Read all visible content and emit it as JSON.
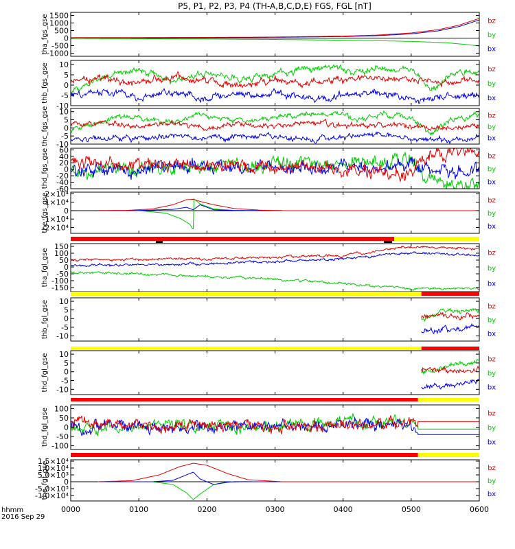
{
  "title": "P5, P1, P2, P3, P4 (TH-A,B,C,D,E) FGS, FGL [nT]",
  "colors": {
    "bz": "#e00000",
    "by": "#00cc00",
    "bx": "#0000e6",
    "mode_slow": "#ff0000",
    "mode_fast": "#ffff00",
    "mode_burst": "#000000",
    "axis": "#000000"
  },
  "legend": [
    "bz",
    "by",
    "bx"
  ],
  "x_axis": {
    "ticks": [
      "0000",
      "0100",
      "0200",
      "0300",
      "0400",
      "0500",
      "0600"
    ],
    "corner_label": "hhmm",
    "date_label": "2016 Sep 29",
    "range_hours": [
      0,
      6
    ]
  },
  "chart_data": [
    {
      "type": "line",
      "ylabel": "tha_fgs_gse",
      "ylim": [
        -1200,
        1700
      ],
      "yticks": [
        "1500",
        "1000",
        "500",
        "0",
        "-500",
        "-1000"
      ],
      "ytick_values": [
        1500,
        1000,
        500,
        0,
        -500,
        -1000
      ],
      "zero_line": true,
      "data_start": 0.0,
      "data_end": 6.0,
      "noise": 0,
      "series": [
        {
          "name": "bz",
          "x": [
            0,
            1,
            2,
            3,
            4,
            4.5,
            5,
            5.4,
            5.7,
            5.9,
            6.0
          ],
          "values": [
            30,
            35,
            45,
            70,
            130,
            200,
            340,
            560,
            850,
            1150,
            1300
          ]
        },
        {
          "name": "by",
          "x": [
            0,
            1,
            2,
            3,
            4,
            4.5,
            5,
            5.5,
            5.8,
            6.0
          ],
          "values": [
            -20,
            -40,
            -60,
            -90,
            -140,
            -170,
            -220,
            -300,
            -420,
            -520
          ]
        },
        {
          "name": "bx",
          "x": [
            0,
            1,
            2,
            3,
            4,
            4.5,
            5,
            5.4,
            5.7,
            5.9,
            6.0
          ],
          "values": [
            20,
            25,
            35,
            55,
            100,
            160,
            280,
            480,
            760,
            1050,
            1200
          ]
        }
      ]
    },
    {
      "type": "line",
      "ylabel": "thb_fgs_gse",
      "ylim": [
        -10,
        12
      ],
      "yticks": [
        "10",
        "5",
        "0",
        "-5",
        "-10"
      ],
      "ytick_values": [
        10,
        5,
        0,
        -5,
        -10
      ],
      "zero_line": false,
      "data_start": 0.0,
      "data_end": 6.0,
      "noise": 1.3,
      "series": [
        {
          "name": "bz",
          "x": [
            0,
            0.5,
            1,
            1.5,
            2,
            2.5,
            3,
            3.5,
            4,
            4.5,
            5,
            5.5,
            6
          ],
          "values": [
            2,
            3,
            1,
            4,
            2,
            0,
            3,
            1,
            2,
            4,
            2,
            1,
            3
          ]
        },
        {
          "name": "by",
          "x": [
            0,
            0.5,
            1,
            1.5,
            2,
            2.5,
            3,
            3.5,
            3.9,
            4.2,
            4.6,
            5,
            5.3,
            5.6,
            6
          ],
          "values": [
            -3,
            4,
            8,
            2,
            6,
            3,
            5,
            8,
            9,
            6,
            9,
            7,
            -3,
            5,
            6
          ]
        },
        {
          "name": "bx",
          "x": [
            0,
            0.5,
            1,
            1.5,
            2,
            2.5,
            3,
            3.5,
            4,
            4.5,
            5,
            5.5,
            6
          ],
          "values": [
            -5,
            -3,
            -6,
            -4,
            -6,
            -5,
            -4,
            -6,
            -5,
            -3,
            -7,
            -6,
            -5
          ]
        }
      ]
    },
    {
      "type": "line",
      "ylabel": "thc_fgs_gse",
      "ylim": [
        -10,
        12
      ],
      "yticks": [
        "10",
        "5",
        "0",
        "-5",
        "-10"
      ],
      "ytick_values": [
        10,
        5,
        0,
        -5,
        -10
      ],
      "zero_line": false,
      "data_start": 0.0,
      "data_end": 6.0,
      "noise": 1.3,
      "series": [
        {
          "name": "bz",
          "x": [
            0,
            0.5,
            1,
            1.5,
            2,
            2.5,
            3,
            3.5,
            4,
            4.5,
            5,
            5.5,
            6
          ],
          "values": [
            3,
            2,
            1,
            3,
            0,
            2,
            1,
            3,
            1,
            2,
            1,
            0,
            2
          ]
        },
        {
          "name": "by",
          "x": [
            0,
            0.5,
            1,
            1.5,
            2,
            2.5,
            3,
            3.5,
            3.9,
            4.3,
            4.6,
            5,
            5.3,
            5.6,
            6
          ],
          "values": [
            -2,
            5,
            7,
            3,
            8,
            4,
            6,
            9,
            8,
            5,
            9,
            6,
            -4,
            5,
            7
          ]
        },
        {
          "name": "bx",
          "x": [
            0,
            0.5,
            1,
            1.5,
            2,
            2.5,
            3,
            3.5,
            4,
            4.5,
            5,
            5.5,
            6
          ],
          "values": [
            -7,
            -6,
            -7,
            -5,
            -7,
            -6,
            -5,
            -7,
            -6,
            -4,
            -7,
            -7,
            -6
          ]
        }
      ]
    },
    {
      "type": "line",
      "ylabel": "thd_fgs_gse",
      "ylim": [
        -60,
        65
      ],
      "yticks": [
        "60",
        "40",
        "20",
        "0",
        "-20",
        "-40",
        "-60"
      ],
      "ytick_values": [
        60,
        40,
        20,
        0,
        -20,
        -40,
        -60
      ],
      "zero_line": false,
      "data_start": 0.0,
      "data_end": 6.0,
      "noise": 16,
      "series": [
        {
          "name": "bz",
          "x": [
            0,
            1,
            2,
            3,
            4,
            4.5,
            5,
            5.2,
            5.5,
            6
          ],
          "values": [
            25,
            15,
            10,
            5,
            0,
            -10,
            -15,
            40,
            50,
            55
          ]
        },
        {
          "name": "by",
          "x": [
            0,
            1,
            2,
            3,
            4,
            4.5,
            5,
            5.2,
            5.5,
            6
          ],
          "values": [
            -10,
            0,
            10,
            15,
            20,
            25,
            30,
            -30,
            -40,
            -50
          ]
        },
        {
          "name": "bx",
          "x": [
            0,
            1,
            2,
            3,
            4,
            5,
            5.2,
            5.5,
            6
          ],
          "values": [
            -5,
            0,
            5,
            5,
            10,
            10,
            5,
            0,
            -5
          ]
        }
      ]
    },
    {
      "type": "line",
      "ylabel": "the_fgs_gse",
      "ylim": [
        -27000,
        22000
      ],
      "yticks": [
        "2×10⁴",
        "1×10⁴",
        "0",
        "-1×10⁴",
        "-2×10⁴"
      ],
      "ytick_values": [
        20000,
        10000,
        0,
        -10000,
        -20000
      ],
      "zero_line": true,
      "data_start": 0.4,
      "data_end": 3.1,
      "noise": 0,
      "extra_bz_flat": [
        3.1,
        6.0,
        0
      ],
      "series": [
        {
          "name": "bz",
          "x": [
            0.4,
            0.8,
            1.2,
            1.5,
            1.7,
            1.8,
            1.9,
            2.1,
            2.4,
            2.8,
            3.1
          ],
          "values": [
            0,
            200,
            2000,
            7000,
            13000,
            13500,
            11000,
            7000,
            2500,
            500,
            0
          ]
        },
        {
          "name": "by",
          "x": [
            0.4,
            1.0,
            1.4,
            1.6,
            1.75,
            1.8,
            1.81,
            1.9,
            2.1,
            2.4,
            3.1
          ],
          "values": [
            0,
            0,
            -3000,
            -9000,
            -16000,
            -23000,
            14000,
            8000,
            2000,
            300,
            0
          ]
        },
        {
          "name": "bx",
          "x": [
            0.4,
            1.0,
            1.5,
            1.7,
            1.8,
            1.9,
            2.1,
            2.4,
            3.1
          ],
          "values": [
            0,
            200,
            1500,
            4000,
            1000,
            7000,
            1000,
            200,
            0
          ]
        }
      ]
    },
    {
      "type": "line",
      "ylabel": "tha_fgl_gse",
      "ylim": [
        -180,
        170
      ],
      "yticks": [
        "150",
        "100",
        "50",
        "0",
        "-50",
        "-100",
        "-150"
      ],
      "ytick_values": [
        150,
        100,
        50,
        0,
        -50,
        -100,
        -150
      ],
      "zero_line": false,
      "data_start": 0.0,
      "data_end": 6.0,
      "noise": 7,
      "series": [
        {
          "name": "bz",
          "x": [
            0,
            1,
            2,
            3,
            4,
            4.4,
            4.7,
            5,
            5.5,
            6
          ],
          "values": [
            50,
            55,
            60,
            70,
            85,
            105,
            135,
            145,
            140,
            135
          ]
        },
        {
          "name": "by",
          "x": [
            0,
            1,
            2,
            3,
            4,
            4.5,
            5,
            5.5,
            6
          ],
          "values": [
            -40,
            -50,
            -70,
            -90,
            -120,
            -140,
            -160,
            -160,
            -155
          ]
        },
        {
          "name": "bx",
          "x": [
            0,
            1,
            2,
            3,
            4,
            4.5,
            4.8,
            5,
            5.5,
            6
          ],
          "values": [
            10,
            15,
            25,
            40,
            60,
            80,
            100,
            100,
            95,
            90
          ]
        }
      ]
    },
    {
      "type": "line",
      "ylabel": "thb_fgl_gse",
      "ylim": [
        -13,
        12
      ],
      "yticks": [
        "10",
        "5",
        "0",
        "-5",
        "-10"
      ],
      "ytick_values": [
        10,
        5,
        0,
        -5,
        -10
      ],
      "zero_line": false,
      "data_start": 5.15,
      "data_end": 6.0,
      "noise": 1.2,
      "series": [
        {
          "name": "bz",
          "x": [
            5.15,
            5.4,
            5.7,
            6.0
          ],
          "values": [
            1,
            2,
            1,
            2
          ]
        },
        {
          "name": "by",
          "x": [
            5.15,
            5.4,
            5.7,
            6.0
          ],
          "values": [
            0,
            3,
            5,
            6
          ]
        },
        {
          "name": "bx",
          "x": [
            5.15,
            5.4,
            5.7,
            6.0
          ],
          "values": [
            -8,
            -7,
            -6,
            -4
          ]
        }
      ]
    },
    {
      "type": "line",
      "ylabel": "thd_fgl_gse",
      "ylim": [
        -13,
        12
      ],
      "yticks": [
        "10",
        "5",
        "0",
        "-5",
        "-10"
      ],
      "ytick_values": [
        10,
        5,
        0,
        -5,
        -10
      ],
      "zero_line": false,
      "data_start": 5.15,
      "data_end": 6.0,
      "noise": 1.2,
      "series": [
        {
          "name": "bz",
          "x": [
            5.15,
            5.4,
            5.7,
            6.0
          ],
          "values": [
            1,
            1,
            0,
            2
          ]
        },
        {
          "name": "by",
          "x": [
            5.15,
            5.4,
            5.7,
            6.0
          ],
          "values": [
            0,
            2,
            5,
            6
          ]
        },
        {
          "name": "bx",
          "x": [
            5.15,
            5.4,
            5.7,
            6.0
          ],
          "values": [
            -9,
            -8,
            -7,
            -5
          ]
        }
      ]
    },
    {
      "type": "line",
      "ylabel": "thd_fgl_gse",
      "ylim": [
        -120,
        120
      ],
      "yticks": [
        "100",
        "50",
        "0",
        "-50",
        "-100"
      ],
      "ytick_values": [
        100,
        50,
        0,
        -50,
        -100
      ],
      "zero_line": false,
      "data_start": 0.0,
      "data_end": 5.1,
      "noise": 24,
      "flat_after": {
        "from": 5.1,
        "to": 6.0,
        "bz": 30,
        "by": -10,
        "bx": -40
      },
      "series": [
        {
          "name": "bz",
          "x": [
            0,
            1,
            2,
            3,
            4,
            5,
            5.1
          ],
          "values": [
            20,
            15,
            10,
            5,
            10,
            20,
            30
          ]
        },
        {
          "name": "by",
          "x": [
            0,
            1,
            2,
            3,
            4,
            5,
            5.1
          ],
          "values": [
            -10,
            0,
            5,
            10,
            20,
            20,
            -10
          ]
        },
        {
          "name": "bx",
          "x": [
            0,
            1,
            2,
            3,
            4,
            5,
            5.1
          ],
          "values": [
            0,
            5,
            5,
            10,
            10,
            15,
            -40
          ]
        }
      ]
    },
    {
      "type": "line",
      "ylabel": "the_fgl_gse",
      "ylim": [
        -14000,
        16000
      ],
      "yticks": [
        "1.5×10⁴",
        "1.0×10⁴",
        "5.0×10³",
        "0",
        "-5.0×10³",
        "-1.0×10⁴",
        "-1.5×10⁴"
      ],
      "ytick_values": [
        15000,
        10000,
        5000,
        0,
        -5000,
        -10000,
        -15000
      ],
      "zero_line": true,
      "data_start": 0.4,
      "data_end": 3.8,
      "noise": 0,
      "extra_bz_flat": [
        3.1,
        6.0,
        0
      ],
      "series": [
        {
          "name": "bz",
          "x": [
            0.4,
            0.9,
            1.3,
            1.6,
            1.8,
            2.0,
            2.3,
            2.6,
            3.1
          ],
          "values": [
            0,
            800,
            5000,
            11000,
            13500,
            12000,
            6000,
            1500,
            0
          ]
        },
        {
          "name": "by",
          "x": [
            0.4,
            1.2,
            1.5,
            1.7,
            1.8,
            1.9,
            2.1,
            2.4,
            2.7,
            3.8
          ],
          "values": [
            0,
            0,
            -2000,
            -8000,
            -13000,
            -9000,
            -2000,
            200,
            0,
            0
          ]
        },
        {
          "name": "bx",
          "x": [
            0.4,
            1.2,
            1.5,
            1.7,
            1.8,
            1.9,
            2.1,
            2.3,
            2.5
          ],
          "values": [
            0,
            0,
            1000,
            5000,
            7000,
            2000,
            -2000,
            -200,
            0
          ]
        }
      ]
    }
  ],
  "mode_bars": [
    {
      "segments": [
        {
          "from": 0.0,
          "to": 4.75,
          "color": "mode_slow"
        },
        {
          "from": 4.75,
          "to": 6.0,
          "color": "mode_fast"
        }
      ],
      "ticks": [
        [
          1.25,
          1.35
        ],
        [
          4.6,
          4.72
        ]
      ]
    },
    {
      "segments": [
        {
          "from": 0.0,
          "to": 5.15,
          "color": "mode_fast"
        },
        {
          "from": 5.15,
          "to": 6.0,
          "color": "mode_slow"
        }
      ],
      "ticks": []
    },
    {
      "segments": [
        {
          "from": 0.0,
          "to": 5.15,
          "color": "mode_fast"
        },
        {
          "from": 5.15,
          "to": 6.0,
          "color": "mode_slow"
        }
      ],
      "ticks": []
    },
    {
      "segments": [
        {
          "from": 0.0,
          "to": 5.1,
          "color": "mode_slow"
        },
        {
          "from": 5.1,
          "to": 6.0,
          "color": "mode_fast"
        }
      ],
      "ticks": []
    },
    {
      "segments": [
        {
          "from": 0.0,
          "to": 5.1,
          "color": "mode_slow"
        },
        {
          "from": 5.1,
          "to": 6.0,
          "color": "mode_fast"
        }
      ],
      "ticks": []
    }
  ]
}
